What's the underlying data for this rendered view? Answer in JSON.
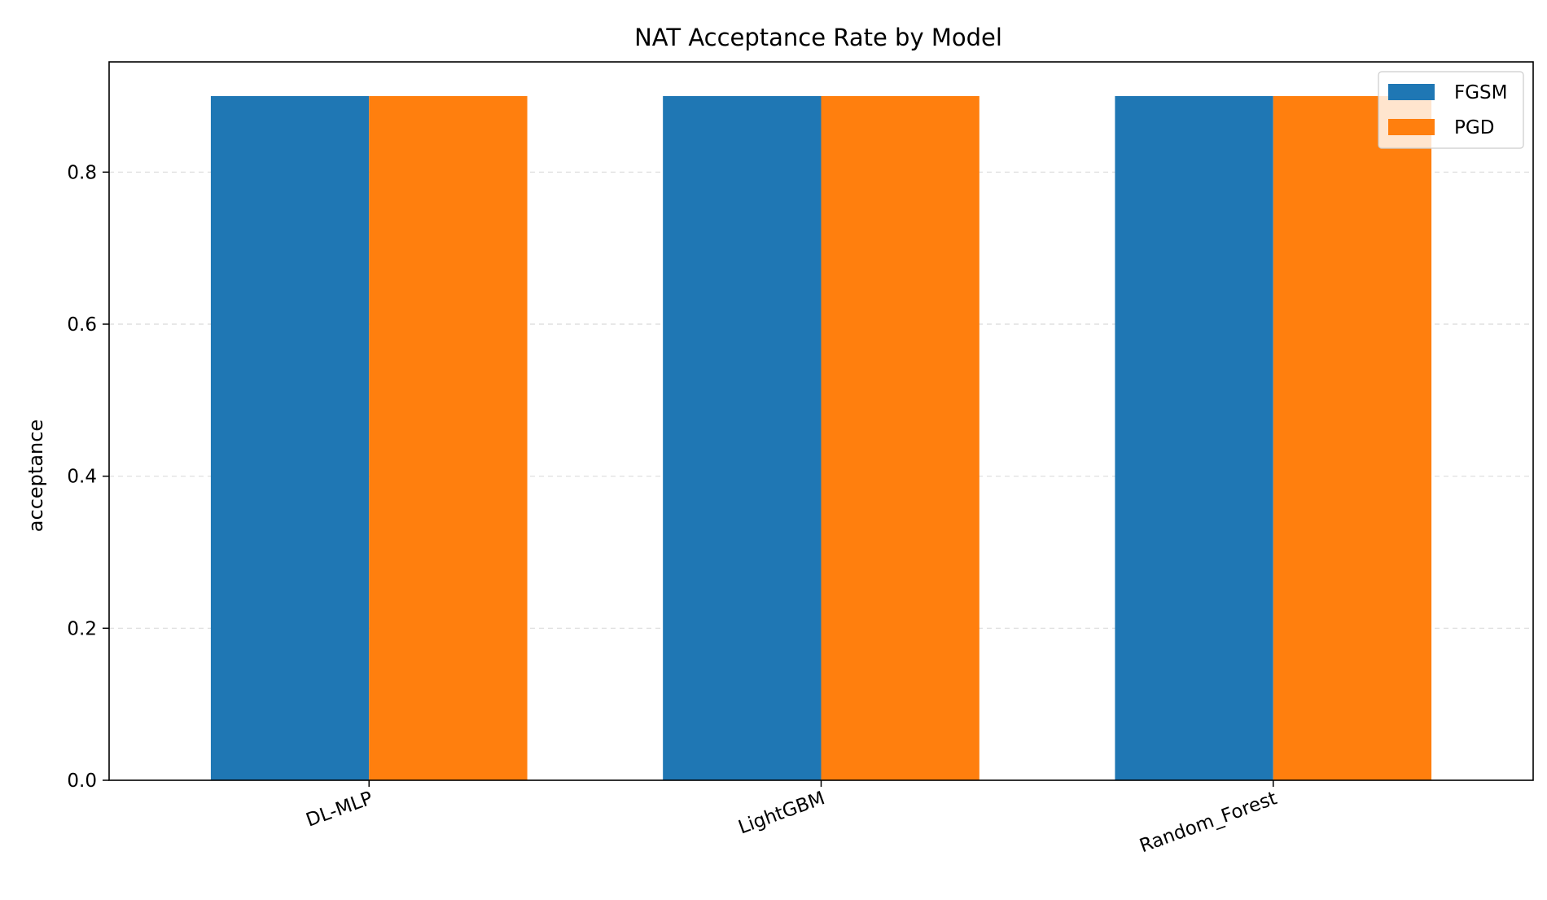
{
  "chart_data": {
    "type": "bar",
    "title": "NAT Acceptance Rate by Model",
    "xlabel": "",
    "ylabel": "acceptance",
    "categories": [
      "DL-MLP",
      "LightGBM",
      "Random_Forest"
    ],
    "series": [
      {
        "name": "FGSM",
        "color": "#1f77b4",
        "values": [
          0.9,
          0.9,
          0.9
        ]
      },
      {
        "name": "PGD",
        "color": "#ff7f0e",
        "values": [
          0.9,
          0.9,
          0.9
        ]
      }
    ],
    "ylim": [
      0,
      0.945
    ],
    "yticks": [
      {
        "value": 0.0,
        "label": "0.0"
      },
      {
        "value": 0.2,
        "label": "0.2"
      },
      {
        "value": 0.4,
        "label": "0.4"
      },
      {
        "value": 0.6,
        "label": "0.6"
      },
      {
        "value": 0.8,
        "label": "0.8"
      }
    ],
    "grid": "y-dashed",
    "legend": "top-right"
  }
}
